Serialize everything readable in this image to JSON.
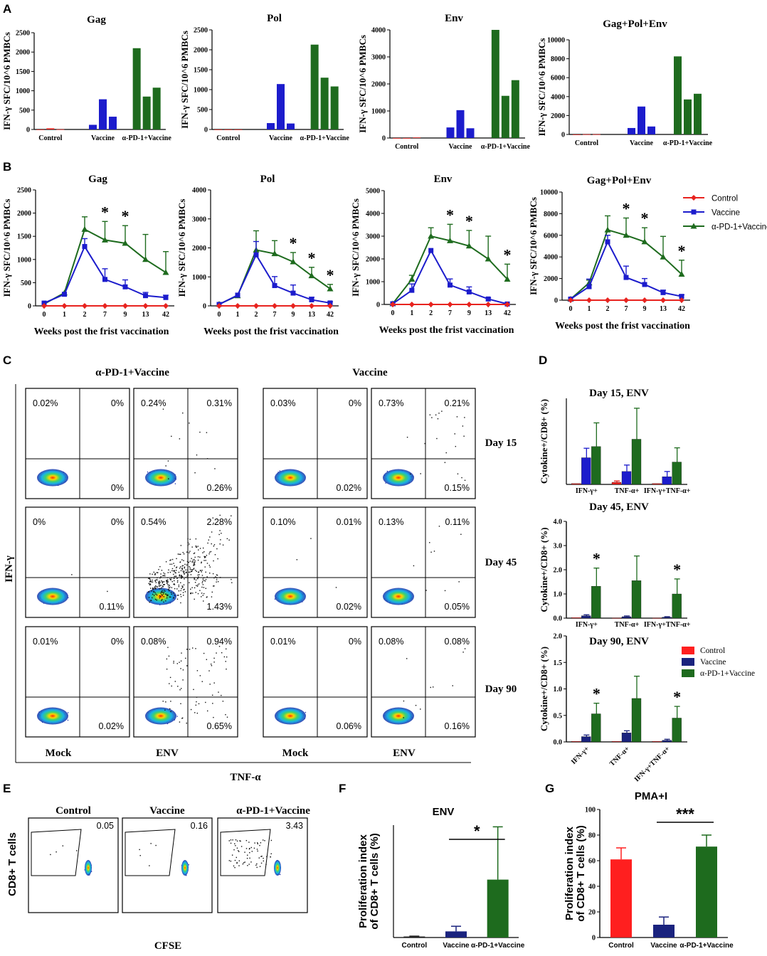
{
  "colors": {
    "control": "#e8231f",
    "vaccine": "#1c1ccc",
    "vaccine_dark": "#1a237e",
    "pd1": "#1e6b1e",
    "bar_red": "#ff1f1f"
  },
  "panel_labels": {
    "A": "A",
    "B": "B",
    "C": "C",
    "D": "D",
    "E": "E",
    "F": "F",
    "G": "G"
  },
  "chart_data": [
    {
      "id": "A",
      "type": "bar",
      "ylabel": "IFN-γ SFC/10^6 PMBCs",
      "groups": [
        "Control",
        "Vaccine",
        "α-PD-1+Vaccine"
      ],
      "subcharts": [
        {
          "title": "Gag",
          "ylim": [
            0,
            2500
          ],
          "yticks": [
            "0",
            "500",
            "1000",
            "1500",
            "2000",
            "2500"
          ],
          "values": [
            [
              0,
              30,
              5
            ],
            [
              120,
              780,
              330
            ],
            [
              2100,
              850,
              1080
            ]
          ]
        },
        {
          "title": "Pol",
          "ylim": [
            0,
            2500
          ],
          "yticks": [
            "0",
            "500",
            "1000",
            "1500",
            "2000",
            "2500"
          ],
          "values": [
            [
              0,
              0,
              0
            ],
            [
              160,
              1140,
              150
            ],
            [
              2130,
              1300,
              1080
            ]
          ]
        },
        {
          "title": "Env",
          "ylim": [
            0,
            4000
          ],
          "yticks": [
            "0",
            "1000",
            "2000",
            "3000",
            "4000"
          ],
          "values": [
            [
              0,
              0,
              20
            ],
            [
              390,
              1030,
              360
            ],
            [
              4000,
              1560,
              2140
            ]
          ]
        },
        {
          "title": "Gag+Pol+Env",
          "ylim": [
            0,
            10000
          ],
          "yticks": [
            "0",
            "2000",
            "4000",
            "6000",
            "8000",
            "10000"
          ],
          "values": [
            [
              0,
              20,
              20
            ],
            [
              680,
              2950,
              840
            ],
            [
              8250,
              3700,
              4300
            ]
          ]
        }
      ]
    },
    {
      "id": "B",
      "type": "line",
      "ylabel": "IFN-γ SFC/10^6 PMBCs",
      "xlabel": "Weeks post the frist vaccination",
      "x": [
        "0",
        "1",
        "2",
        "7",
        "9",
        "13",
        "42"
      ],
      "legend": [
        "Control",
        "Vaccine",
        "α-PD-1+Vaccine"
      ],
      "subcharts": [
        {
          "title": "Gag",
          "ylim": [
            0,
            2500
          ],
          "yticks": [
            "0",
            "500",
            "1000",
            "1500",
            "2000",
            "2500"
          ],
          "series": [
            {
              "name": "Control",
              "values": [
                0,
                0,
                0,
                0,
                0,
                0,
                0
              ],
              "err": [
                0,
                0,
                0,
                0,
                0,
                0,
                0
              ]
            },
            {
              "name": "Vaccine",
              "values": [
                60,
                250,
                1280,
                570,
                410,
                220,
                180
              ],
              "err": [
                0,
                0,
                170,
                230,
                150,
                70,
                50
              ]
            },
            {
              "name": "α-PD-1+Vaccine",
              "values": [
                40,
                280,
                1650,
                1420,
                1350,
                1000,
                720
              ],
              "err": [
                0,
                0,
                270,
                400,
                380,
                540,
                450
              ]
            }
          ],
          "stars": [
            3,
            4
          ]
        },
        {
          "title": "Pol",
          "ylim": [
            0,
            4000
          ],
          "yticks": [
            "0",
            "1000",
            "2000",
            "3000",
            "4000"
          ],
          "series": [
            {
              "name": "Control",
              "values": [
                0,
                0,
                0,
                0,
                0,
                0,
                0
              ],
              "err": [
                0,
                0,
                0,
                0,
                0,
                0,
                0
              ]
            },
            {
              "name": "Vaccine",
              "values": [
                50,
                370,
                1760,
                700,
                440,
                210,
                100
              ],
              "err": [
                0,
                0,
                460,
                310,
                280,
                90,
                40
              ]
            },
            {
              "name": "α-PD-1+Vaccine",
              "values": [
                60,
                350,
                1930,
                1800,
                1520,
                1040,
                590
              ],
              "err": [
                0,
                0,
                660,
                450,
                320,
                290,
                150
              ]
            }
          ],
          "stars": [
            4,
            5,
            6
          ]
        },
        {
          "title": "Env",
          "ylim": [
            0,
            5000
          ],
          "yticks": [
            "0",
            "1000",
            "2000",
            "3000",
            "4000",
            "5000"
          ],
          "series": [
            {
              "name": "Control",
              "values": [
                0,
                0,
                0,
                0,
                0,
                0,
                0
              ],
              "err": [
                0,
                0,
                0,
                0,
                0,
                0,
                0
              ]
            },
            {
              "name": "Vaccine",
              "values": [
                30,
                620,
                2370,
                850,
                550,
                240,
                20
              ],
              "err": [
                0,
                280,
                0,
                270,
                220,
                50,
                0
              ]
            },
            {
              "name": "α-PD-1+Vaccine",
              "values": [
                30,
                1110,
                3000,
                2800,
                2570,
                2000,
                1110
              ],
              "err": [
                0,
                170,
                370,
                720,
                680,
                1000,
                660
              ]
            }
          ],
          "stars": [
            3,
            4,
            6
          ]
        },
        {
          "title": "Gag+Pol+Env",
          "ylim": [
            0,
            10000
          ],
          "yticks": [
            "0",
            "2000",
            "4000",
            "6000",
            "8000",
            "10000"
          ],
          "series": [
            {
              "name": "Control",
              "values": [
                0,
                0,
                0,
                0,
                0,
                0,
                0
              ],
              "err": [
                0,
                0,
                0,
                0,
                0,
                0,
                0
              ]
            },
            {
              "name": "Vaccine",
              "values": [
                100,
                1250,
                5400,
                2100,
                1450,
                700,
                350
              ],
              "err": [
                0,
                700,
                600,
                1050,
                550,
                230,
                150
              ]
            },
            {
              "name": "α-PD-1+Vaccine",
              "values": [
                100,
                1600,
                6500,
                6000,
                5400,
                4000,
                2400
              ],
              "err": [
                0,
                250,
                1300,
                1600,
                1300,
                1900,
                1300
              ]
            }
          ],
          "stars": [
            3,
            4,
            6
          ]
        }
      ]
    },
    {
      "id": "D",
      "type": "bar",
      "ylabel": "Cytokine+/CD8+ (%)",
      "categories": [
        "IFN-γ+",
        "TNF-α+",
        "IFN-γ+TNF-α+"
      ],
      "legend": [
        "Control",
        "Vaccine",
        "α-PD-1+Vaccine"
      ],
      "subcharts": [
        {
          "title": "Day 15, ENV",
          "ylim": [
            0,
            2.0
          ],
          "yticks": [],
          "values": [
            [
              0.02,
              0.62,
              0.88
            ],
            [
              0.05,
              0.3,
              1.05
            ],
            [
              0.02,
              0.18,
              0.52
            ]
          ],
          "err": [
            [
              0,
              0.22,
              0.55
            ],
            [
              0.03,
              0.15,
              0.72
            ],
            [
              0,
              0.12,
              0.33
            ]
          ],
          "stars": []
        },
        {
          "title": "Day 45, ENV",
          "ylim": [
            0,
            4.0
          ],
          "yticks": [
            "0.0",
            "1.0",
            "2.0",
            "3.0",
            "4.0"
          ],
          "values": [
            [
              0.02,
              0.1,
              1.32
            ],
            [
              0.01,
              0.06,
              1.55
            ],
            [
              0.01,
              0.04,
              1.0
            ]
          ],
          "err": [
            [
              0,
              0.04,
              0.75
            ],
            [
              0,
              0.03,
              1.02
            ],
            [
              0,
              0.02,
              0.62
            ]
          ],
          "stars": [
            0,
            2
          ]
        },
        {
          "title": "Day 90, ENV",
          "ylim": [
            0,
            2.0
          ],
          "yticks": [
            "0.0",
            "0.5",
            "1.0",
            "1.5",
            "2.0"
          ],
          "values": [
            [
              0.01,
              0.1,
              0.53
            ],
            [
              0.01,
              0.17,
              0.82
            ],
            [
              0.01,
              0.03,
              0.45
            ]
          ],
          "err": [
            [
              0,
              0.03,
              0.2
            ],
            [
              0,
              0.04,
              0.42
            ],
            [
              0,
              0.02,
              0.22
            ]
          ],
          "stars": [
            0,
            2
          ]
        }
      ]
    },
    {
      "id": "F",
      "type": "bar",
      "title": "ENV",
      "ylabel": "Proliferation index\nof CD8+ T cells (%)",
      "categories": [
        "Control",
        "Vaccine",
        "α-PD-1+Vaccine"
      ],
      "values": [
        0.03,
        0.18,
        1.7
      ],
      "err": [
        0.01,
        0.15,
        1.55
      ],
      "ylim": [
        0,
        3.3
      ],
      "yticks": [],
      "sig": "*"
    },
    {
      "id": "G",
      "type": "bar",
      "title": "PMA+I",
      "ylabel": "Proliferation index\nof CD8+ T cells (%)",
      "categories": [
        "Control",
        "Vaccine",
        "α-PD-1+Vaccine"
      ],
      "values": [
        61,
        10,
        71
      ],
      "err": [
        9,
        6,
        9
      ],
      "ylim": [
        0,
        100
      ],
      "yticks": [
        "0",
        "20",
        "40",
        "60",
        "80",
        "100"
      ],
      "sig": "***"
    }
  ],
  "flow_C": {
    "group_titles": [
      "α-PD-1+Vaccine",
      "Vaccine"
    ],
    "y_axis": "IFN-γ",
    "x_axis": "TNF-α",
    "col_labels": [
      "Mock",
      "ENV",
      "Mock",
      "ENV"
    ],
    "day_labels": [
      "Day 15",
      "Day 45",
      "Day 90"
    ],
    "rows": [
      [
        [
          "0.02%",
          "0%",
          "0%"
        ],
        [
          "0.24%",
          "0.31%",
          "0.26%"
        ],
        [
          "0.03%",
          "0%",
          "0.02%"
        ],
        [
          "0.73%",
          "0.21%",
          "0.15%"
        ]
      ],
      [
        [
          "0%",
          "0%",
          "0.11%"
        ],
        [
          "0.54%",
          "2.28%",
          "1.43%"
        ],
        [
          "0.10%",
          "0.01%",
          "0.02%"
        ],
        [
          "0.13%",
          "0.11%",
          "0.05%"
        ]
      ],
      [
        [
          "0.01%",
          "0%",
          "0.02%"
        ],
        [
          "0.08%",
          "0.94%",
          "0.65%"
        ],
        [
          "0.01%",
          "0%",
          "0.06%"
        ],
        [
          "0.08%",
          "0.08%",
          "0.16%"
        ]
      ]
    ]
  },
  "flow_E": {
    "titles": [
      "Control",
      "Vaccine",
      "α-PD-1+Vaccine"
    ],
    "values": [
      "0.05",
      "0.16",
      "3.43"
    ],
    "y_axis": "CD8+ T cells",
    "x_axis": "CFSE"
  }
}
